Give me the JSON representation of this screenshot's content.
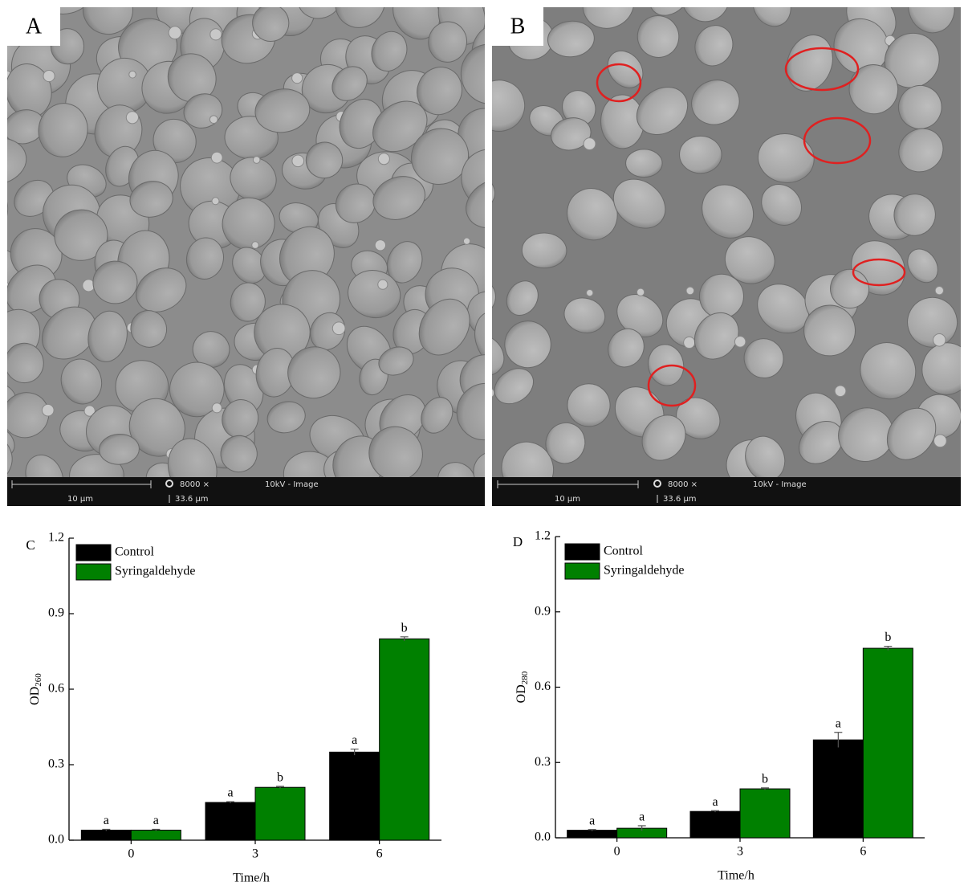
{
  "images": [
    {
      "label": "A",
      "scale_bar": "10 µm",
      "magnification": "8000 ×",
      "mode": "10kV - Image",
      "field_width": "33.6 µm"
    },
    {
      "label": "B",
      "scale_bar": "10 µm",
      "magnification": "8000 ×",
      "mode": "10kV - Image",
      "field_width": "33.6 µm"
    }
  ],
  "chart_data": [
    {
      "type": "bar",
      "panel": "C",
      "y_label": "OD",
      "y_label_sub": "260",
      "x_label": "Time/h",
      "categories": [
        "0",
        "3",
        "6"
      ],
      "series": [
        {
          "name": "Control",
          "color": "#000000",
          "values": [
            0.04,
            0.15,
            0.35
          ],
          "errors": [
            0.003,
            0.003,
            0.012
          ],
          "letters": [
            "a",
            "a",
            "a"
          ]
        },
        {
          "name": "Syringaldehyde",
          "color": "#008000",
          "values": [
            0.04,
            0.21,
            0.8
          ],
          "errors": [
            0.003,
            0.004,
            0.008
          ],
          "letters": [
            "a",
            "b",
            "b"
          ]
        }
      ],
      "ylim": [
        0,
        1.2
      ],
      "yticks": [
        {
          "value": 0,
          "label": "0.0"
        },
        0.3,
        0.6,
        0.9,
        1.2
      ]
    },
    {
      "type": "bar",
      "panel": "D",
      "y_label": "OD",
      "y_label_sub": "280",
      "x_label": "Time/h",
      "categories": [
        "0",
        "3",
        "6"
      ],
      "series": [
        {
          "name": "Control",
          "color": "#000000",
          "values": [
            0.03,
            0.105,
            0.39
          ],
          "errors": [
            0.003,
            0.003,
            0.03
          ],
          "letters": [
            "a",
            "a",
            "a"
          ]
        },
        {
          "name": "Syringaldehyde",
          "color": "#008000",
          "values": [
            0.038,
            0.195,
            0.755
          ],
          "errors": [
            0.01,
            0.004,
            0.008
          ],
          "letters": [
            "a",
            "b",
            "b"
          ]
        }
      ],
      "ylim": [
        0,
        1.2
      ],
      "yticks": [
        {
          "value": 0,
          "label": "0.0"
        },
        0.3,
        0.6,
        0.9,
        1.2
      ]
    }
  ]
}
